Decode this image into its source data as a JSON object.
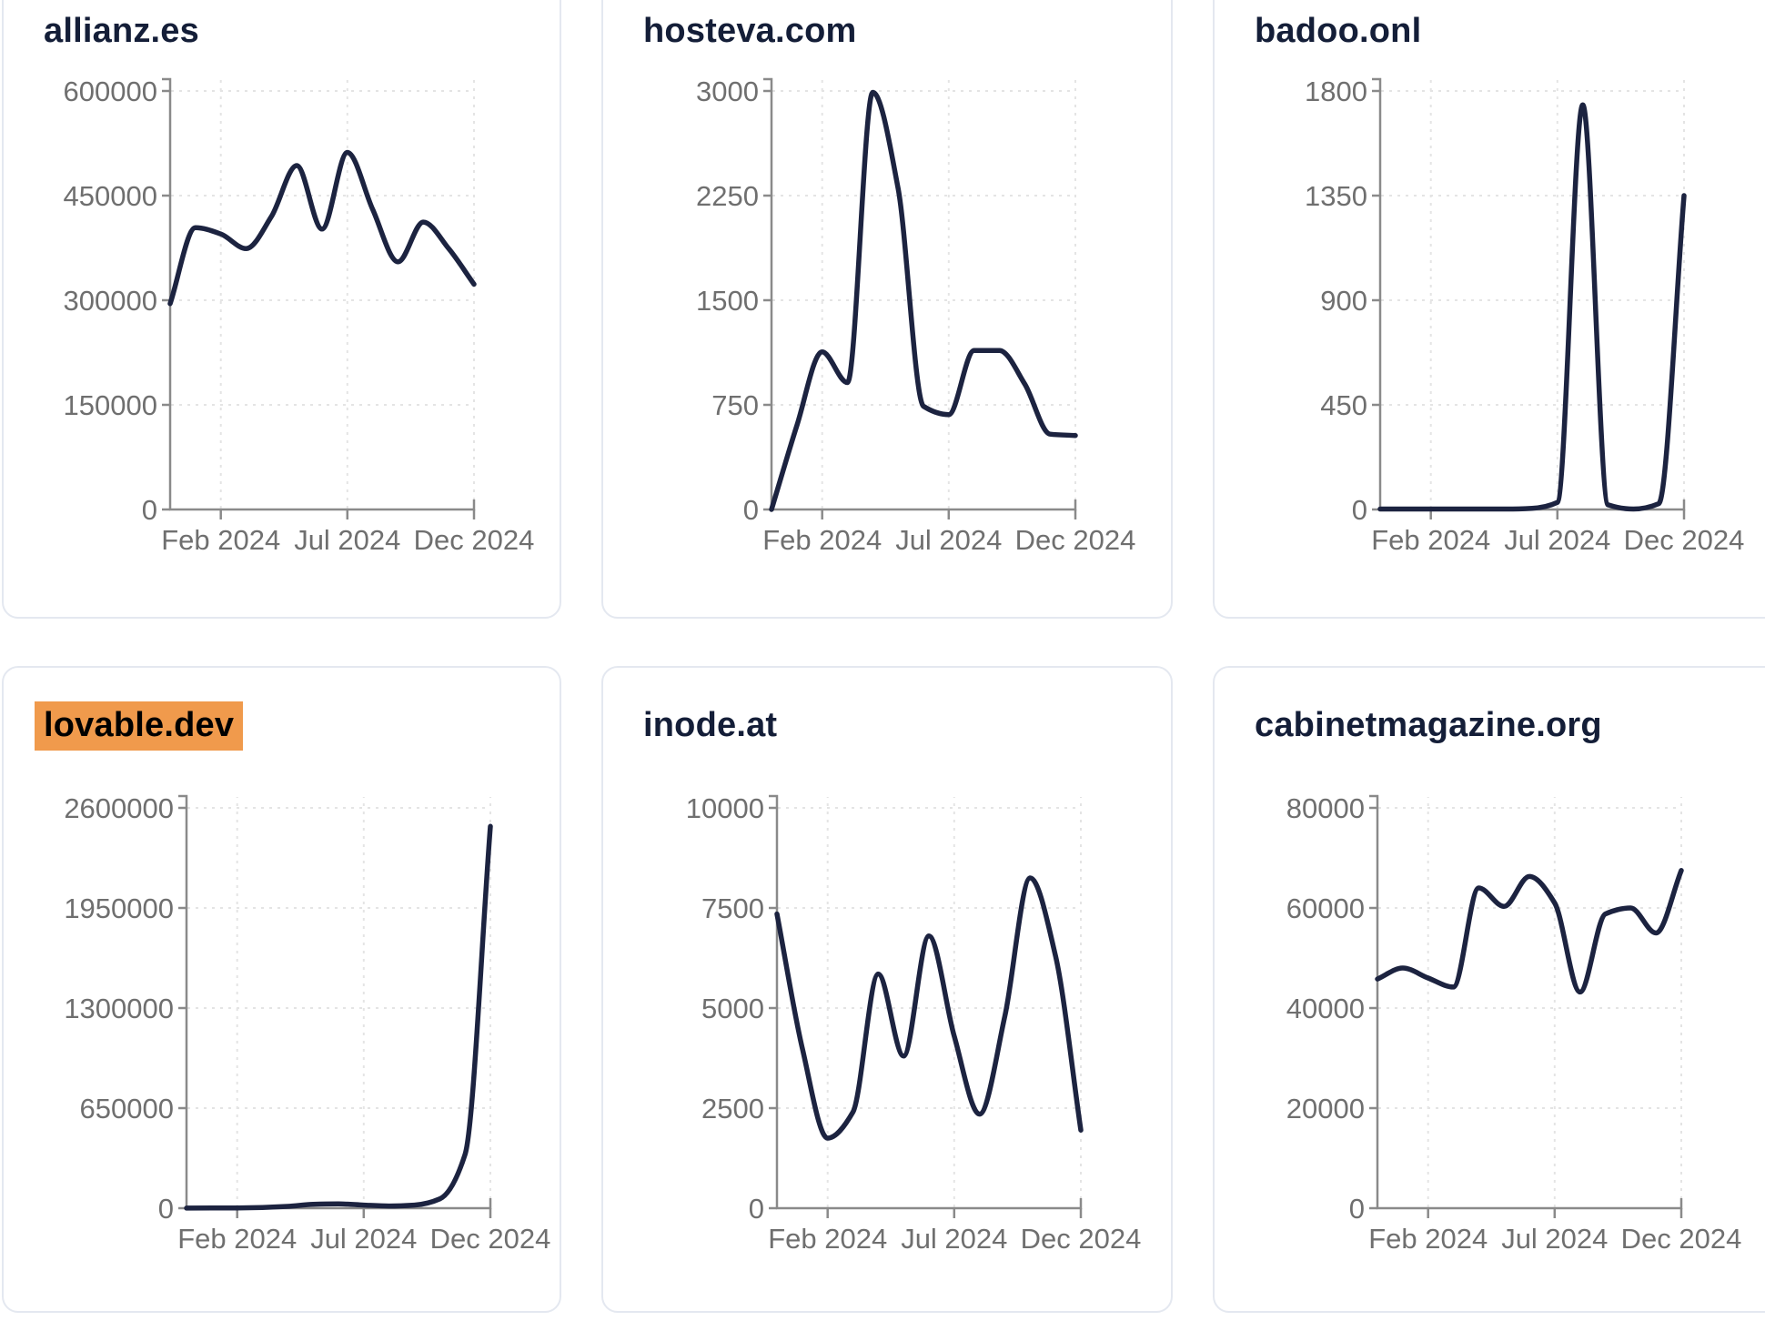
{
  "page": {
    "background": "#ffffff",
    "description": "Dashboard grid of monthly traffic line charts for six domains"
  },
  "colors": {
    "line": "#1c2340",
    "title": "#141e38",
    "highlight_background": "#f09a4c",
    "highlight_text": "#000000",
    "tick_label": "#6f6f6f",
    "axis": "#8a8a8a",
    "grid": "#e4e4e4",
    "card_border": "#e4e8f0",
    "card_background": "#ffffff"
  },
  "chart_data": [
    {
      "title": "allianz.es",
      "highlighted": false,
      "type": "line",
      "x": [
        "Dec 2023",
        "Jan 2024",
        "Feb 2024",
        "Mar 2024",
        "Apr 2024",
        "May 2024",
        "Jun 2024",
        "Jul 2024",
        "Aug 2024",
        "Sep 2024",
        "Oct 2024",
        "Nov 2024",
        "Dec 2024"
      ],
      "values": [
        295000,
        404000,
        395000,
        374000,
        420000,
        493000,
        402000,
        512000,
        430000,
        355000,
        412000,
        374000,
        323000
      ],
      "y_ticks": [
        0,
        150000,
        300000,
        450000,
        600000
      ],
      "ylim": [
        0,
        600000
      ],
      "x_tick_labels": [
        "Feb 2024",
        "Jul 2024",
        "Dec 2024"
      ],
      "x_tick_indices": [
        2,
        7,
        12
      ],
      "grid": true,
      "legend": false
    },
    {
      "title": "hosteva.com",
      "highlighted": false,
      "type": "line",
      "x": [
        "Dec 2023",
        "Jan 2024",
        "Feb 2024",
        "Mar 2024",
        "Apr 2024",
        "May 2024",
        "Jun 2024",
        "Jul 2024",
        "Aug 2024",
        "Sep 2024",
        "Oct 2024",
        "Nov 2024",
        "Dec 2024"
      ],
      "values": [
        0,
        600,
        1130,
        910,
        2990,
        2300,
        740,
        680,
        1140,
        1140,
        900,
        540,
        530
      ],
      "y_ticks": [
        0,
        750,
        1500,
        2250,
        3000
      ],
      "ylim": [
        0,
        3000
      ],
      "x_tick_labels": [
        "Feb 2024",
        "Jul 2024",
        "Dec 2024"
      ],
      "x_tick_indices": [
        2,
        7,
        12
      ],
      "grid": true,
      "legend": false
    },
    {
      "title": "badoo.onl",
      "highlighted": false,
      "type": "line",
      "x": [
        "Dec 2023",
        "Jan 2024",
        "Feb 2024",
        "Mar 2024",
        "Apr 2024",
        "May 2024",
        "Jun 2024",
        "Jul 2024",
        "Aug 2024",
        "Sep 2024",
        "Oct 2024",
        "Nov 2024",
        "Dec 2024"
      ],
      "values": [
        2,
        2,
        2,
        2,
        2,
        2,
        5,
        30,
        1740,
        20,
        2,
        25,
        1350
      ],
      "y_ticks": [
        0,
        450,
        900,
        1350,
        1800
      ],
      "ylim": [
        0,
        1800
      ],
      "x_tick_labels": [
        "Feb 2024",
        "Jul 2024",
        "Dec 2024"
      ],
      "x_tick_indices": [
        2,
        7,
        12
      ],
      "grid": true,
      "legend": false
    },
    {
      "title": "lovable.dev",
      "highlighted": true,
      "type": "line",
      "x": [
        "Dec 2023",
        "Jan 2024",
        "Feb 2024",
        "Mar 2024",
        "Apr 2024",
        "May 2024",
        "Jun 2024",
        "Jul 2024",
        "Aug 2024",
        "Sep 2024",
        "Oct 2024",
        "Nov 2024",
        "Dec 2024"
      ],
      "values": [
        500,
        1000,
        2000,
        5000,
        12000,
        25000,
        28000,
        20000,
        14000,
        20000,
        60000,
        350000,
        2480000
      ],
      "y_ticks": [
        0,
        650000,
        1300000,
        1950000,
        2600000
      ],
      "ylim": [
        0,
        2600000
      ],
      "x_tick_labels": [
        "Feb 2024",
        "Jul 2024",
        "Dec 2024"
      ],
      "x_tick_indices": [
        2,
        7,
        12
      ],
      "grid": true,
      "legend": false
    },
    {
      "title": "inode.at",
      "highlighted": false,
      "type": "line",
      "x": [
        "Dec 2023",
        "Jan 2024",
        "Feb 2024",
        "Mar 2024",
        "Apr 2024",
        "May 2024",
        "Jun 2024",
        "Jul 2024",
        "Aug 2024",
        "Sep 2024",
        "Oct 2024",
        "Nov 2024",
        "Dec 2024"
      ],
      "values": [
        7350,
        4000,
        1750,
        2400,
        5850,
        3800,
        6800,
        4300,
        2350,
        4800,
        8250,
        6300,
        1950
      ],
      "y_ticks": [
        0,
        2500,
        5000,
        7500,
        10000
      ],
      "ylim": [
        0,
        10000
      ],
      "x_tick_labels": [
        "Feb 2024",
        "Jul 2024",
        "Dec 2024"
      ],
      "x_tick_indices": [
        2,
        7,
        12
      ],
      "grid": true,
      "legend": false
    },
    {
      "title": "cabinetmagazine.org",
      "highlighted": false,
      "type": "line",
      "x": [
        "Dec 2023",
        "Jan 2024",
        "Feb 2024",
        "Mar 2024",
        "Apr 2024",
        "May 2024",
        "Jun 2024",
        "Jul 2024",
        "Aug 2024",
        "Sep 2024",
        "Oct 2024",
        "Nov 2024",
        "Dec 2024"
      ],
      "values": [
        45800,
        48000,
        46000,
        44200,
        64000,
        60300,
        66300,
        61000,
        43200,
        58800,
        60000,
        55000,
        67500
      ],
      "y_ticks": [
        0,
        20000,
        40000,
        60000,
        80000
      ],
      "ylim": [
        0,
        80000
      ],
      "x_tick_labels": [
        "Feb 2024",
        "Jul 2024",
        "Dec 2024"
      ],
      "x_tick_indices": [
        2,
        7,
        12
      ],
      "grid": true,
      "legend": false
    }
  ]
}
